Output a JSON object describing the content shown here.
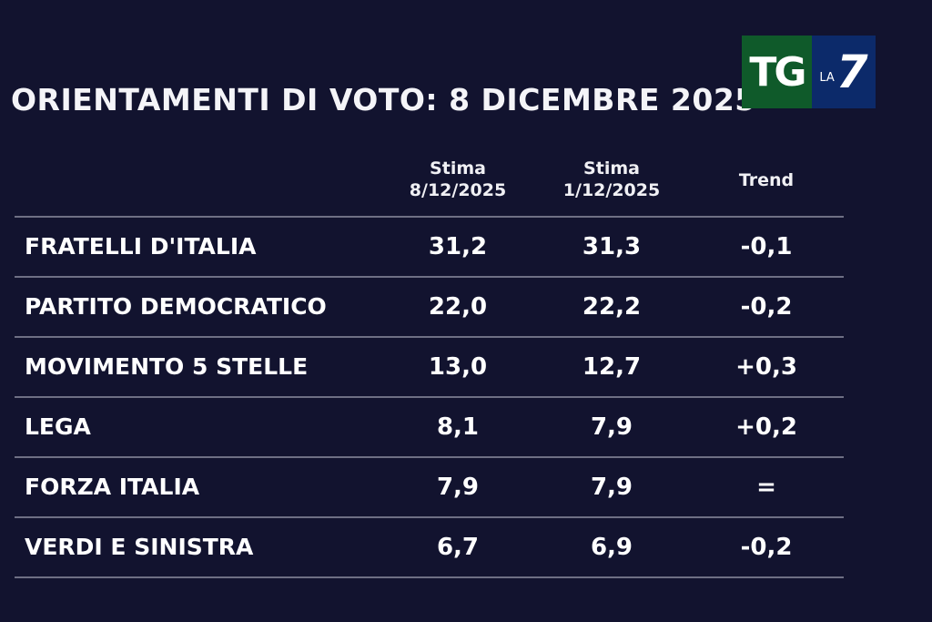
{
  "title": "ORIENTAMENTI DI VOTO: 8 DICEMBRE 2025",
  "logo": {
    "tg": "TG",
    "la": "LA",
    "seven": "7",
    "colors": {
      "green": "#0f5a2a",
      "blue": "#0c2a6a"
    }
  },
  "columns": [
    {
      "line1": "Stima",
      "line2": "8/12/2025"
    },
    {
      "line1": "Stima",
      "line2": "1/12/2025"
    },
    {
      "line1": "Trend",
      "line2": ""
    }
  ],
  "rows": [
    {
      "party": "FRATELLI D'ITALIA",
      "current": "31,2",
      "previous": "31,3",
      "trend": "-0,1"
    },
    {
      "party": "PARTITO DEMOCRATICO",
      "current": "22,0",
      "previous": "22,2",
      "trend": "-0,2"
    },
    {
      "party": "MOVIMENTO 5 STELLE",
      "current": "13,0",
      "previous": "12,7",
      "trend": "+0,3"
    },
    {
      "party": "LEGA",
      "current": "8,1",
      "previous": "7,9",
      "trend": "+0,2"
    },
    {
      "party": "FORZA ITALIA",
      "current": "7,9",
      "previous": "7,9",
      "trend": "="
    },
    {
      "party": "VERDI E SINISTRA",
      "current": "6,7",
      "previous": "6,9",
      "trend": "-0,2"
    }
  ]
}
